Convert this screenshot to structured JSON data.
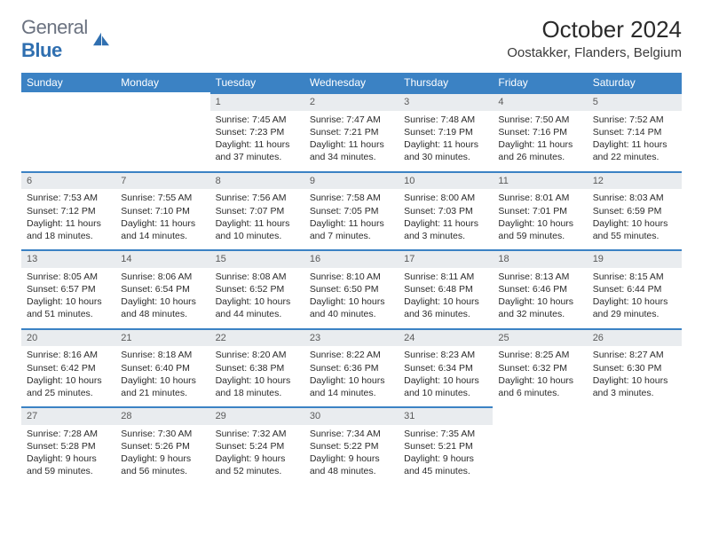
{
  "brand": {
    "name_part1": "General",
    "name_part2": "Blue"
  },
  "header": {
    "title": "October 2024",
    "location": "Oostakker, Flanders, Belgium"
  },
  "colors": {
    "header_bg": "#3b82c4",
    "header_text": "#ffffff",
    "daynum_bg": "#e9ecef",
    "body_text": "#2b2b2b",
    "brand_gray": "#6b7280",
    "brand_blue": "#2f6fb0"
  },
  "weekdays": [
    "Sunday",
    "Monday",
    "Tuesday",
    "Wednesday",
    "Thursday",
    "Friday",
    "Saturday"
  ],
  "weeks": [
    [
      {
        "empty": true
      },
      {
        "empty": true
      },
      {
        "day": "1",
        "sunrise": "Sunrise: 7:45 AM",
        "sunset": "Sunset: 7:23 PM",
        "daylight": "Daylight: 11 hours and 37 minutes."
      },
      {
        "day": "2",
        "sunrise": "Sunrise: 7:47 AM",
        "sunset": "Sunset: 7:21 PM",
        "daylight": "Daylight: 11 hours and 34 minutes."
      },
      {
        "day": "3",
        "sunrise": "Sunrise: 7:48 AM",
        "sunset": "Sunset: 7:19 PM",
        "daylight": "Daylight: 11 hours and 30 minutes."
      },
      {
        "day": "4",
        "sunrise": "Sunrise: 7:50 AM",
        "sunset": "Sunset: 7:16 PM",
        "daylight": "Daylight: 11 hours and 26 minutes."
      },
      {
        "day": "5",
        "sunrise": "Sunrise: 7:52 AM",
        "sunset": "Sunset: 7:14 PM",
        "daylight": "Daylight: 11 hours and 22 minutes."
      }
    ],
    [
      {
        "day": "6",
        "sunrise": "Sunrise: 7:53 AM",
        "sunset": "Sunset: 7:12 PM",
        "daylight": "Daylight: 11 hours and 18 minutes."
      },
      {
        "day": "7",
        "sunrise": "Sunrise: 7:55 AM",
        "sunset": "Sunset: 7:10 PM",
        "daylight": "Daylight: 11 hours and 14 minutes."
      },
      {
        "day": "8",
        "sunrise": "Sunrise: 7:56 AM",
        "sunset": "Sunset: 7:07 PM",
        "daylight": "Daylight: 11 hours and 10 minutes."
      },
      {
        "day": "9",
        "sunrise": "Sunrise: 7:58 AM",
        "sunset": "Sunset: 7:05 PM",
        "daylight": "Daylight: 11 hours and 7 minutes."
      },
      {
        "day": "10",
        "sunrise": "Sunrise: 8:00 AM",
        "sunset": "Sunset: 7:03 PM",
        "daylight": "Daylight: 11 hours and 3 minutes."
      },
      {
        "day": "11",
        "sunrise": "Sunrise: 8:01 AM",
        "sunset": "Sunset: 7:01 PM",
        "daylight": "Daylight: 10 hours and 59 minutes."
      },
      {
        "day": "12",
        "sunrise": "Sunrise: 8:03 AM",
        "sunset": "Sunset: 6:59 PM",
        "daylight": "Daylight: 10 hours and 55 minutes."
      }
    ],
    [
      {
        "day": "13",
        "sunrise": "Sunrise: 8:05 AM",
        "sunset": "Sunset: 6:57 PM",
        "daylight": "Daylight: 10 hours and 51 minutes."
      },
      {
        "day": "14",
        "sunrise": "Sunrise: 8:06 AM",
        "sunset": "Sunset: 6:54 PM",
        "daylight": "Daylight: 10 hours and 48 minutes."
      },
      {
        "day": "15",
        "sunrise": "Sunrise: 8:08 AM",
        "sunset": "Sunset: 6:52 PM",
        "daylight": "Daylight: 10 hours and 44 minutes."
      },
      {
        "day": "16",
        "sunrise": "Sunrise: 8:10 AM",
        "sunset": "Sunset: 6:50 PM",
        "daylight": "Daylight: 10 hours and 40 minutes."
      },
      {
        "day": "17",
        "sunrise": "Sunrise: 8:11 AM",
        "sunset": "Sunset: 6:48 PM",
        "daylight": "Daylight: 10 hours and 36 minutes."
      },
      {
        "day": "18",
        "sunrise": "Sunrise: 8:13 AM",
        "sunset": "Sunset: 6:46 PM",
        "daylight": "Daylight: 10 hours and 32 minutes."
      },
      {
        "day": "19",
        "sunrise": "Sunrise: 8:15 AM",
        "sunset": "Sunset: 6:44 PM",
        "daylight": "Daylight: 10 hours and 29 minutes."
      }
    ],
    [
      {
        "day": "20",
        "sunrise": "Sunrise: 8:16 AM",
        "sunset": "Sunset: 6:42 PM",
        "daylight": "Daylight: 10 hours and 25 minutes."
      },
      {
        "day": "21",
        "sunrise": "Sunrise: 8:18 AM",
        "sunset": "Sunset: 6:40 PM",
        "daylight": "Daylight: 10 hours and 21 minutes."
      },
      {
        "day": "22",
        "sunrise": "Sunrise: 8:20 AM",
        "sunset": "Sunset: 6:38 PM",
        "daylight": "Daylight: 10 hours and 18 minutes."
      },
      {
        "day": "23",
        "sunrise": "Sunrise: 8:22 AM",
        "sunset": "Sunset: 6:36 PM",
        "daylight": "Daylight: 10 hours and 14 minutes."
      },
      {
        "day": "24",
        "sunrise": "Sunrise: 8:23 AM",
        "sunset": "Sunset: 6:34 PM",
        "daylight": "Daylight: 10 hours and 10 minutes."
      },
      {
        "day": "25",
        "sunrise": "Sunrise: 8:25 AM",
        "sunset": "Sunset: 6:32 PM",
        "daylight": "Daylight: 10 hours and 6 minutes."
      },
      {
        "day": "26",
        "sunrise": "Sunrise: 8:27 AM",
        "sunset": "Sunset: 6:30 PM",
        "daylight": "Daylight: 10 hours and 3 minutes."
      }
    ],
    [
      {
        "day": "27",
        "sunrise": "Sunrise: 7:28 AM",
        "sunset": "Sunset: 5:28 PM",
        "daylight": "Daylight: 9 hours and 59 minutes."
      },
      {
        "day": "28",
        "sunrise": "Sunrise: 7:30 AM",
        "sunset": "Sunset: 5:26 PM",
        "daylight": "Daylight: 9 hours and 56 minutes."
      },
      {
        "day": "29",
        "sunrise": "Sunrise: 7:32 AM",
        "sunset": "Sunset: 5:24 PM",
        "daylight": "Daylight: 9 hours and 52 minutes."
      },
      {
        "day": "30",
        "sunrise": "Sunrise: 7:34 AM",
        "sunset": "Sunset: 5:22 PM",
        "daylight": "Daylight: 9 hours and 48 minutes."
      },
      {
        "day": "31",
        "sunrise": "Sunrise: 7:35 AM",
        "sunset": "Sunset: 5:21 PM",
        "daylight": "Daylight: 9 hours and 45 minutes."
      },
      {
        "empty": true
      },
      {
        "empty": true
      }
    ]
  ]
}
